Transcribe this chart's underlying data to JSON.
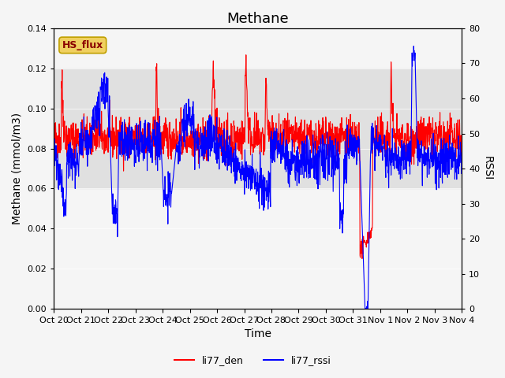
{
  "title": "Methane",
  "ylabel_left": "Methane (mmol/m3)",
  "ylabel_right": "RSSI",
  "xlabel": "Time",
  "ylim_left": [
    0.0,
    0.14
  ],
  "ylim_right": [
    0,
    80
  ],
  "xtick_labels": [
    "Oct 20",
    "Oct 21",
    "Oct 22",
    "Oct 23",
    "Oct 24",
    "Oct 25",
    "Oct 26",
    "Oct 27",
    "Oct 28",
    "Oct 29",
    "Oct 30",
    "Oct 31",
    "Nov 1",
    "Nov 2",
    "Nov 3",
    "Nov 4"
  ],
  "shaded_region": [
    0.06,
    0.12
  ],
  "shaded_color": "#e0e0e0",
  "line_red_color": "#ff0000",
  "line_blue_color": "#0000ff",
  "legend_labels": [
    "li77_den",
    "li77_rssi"
  ],
  "hs_flux_label": "HS_flux",
  "hs_flux_bg": "#f0d060",
  "hs_flux_border": "#c0a000",
  "background_color": "#f5f5f5",
  "title_fontsize": 13,
  "axis_label_fontsize": 10,
  "tick_fontsize": 8
}
